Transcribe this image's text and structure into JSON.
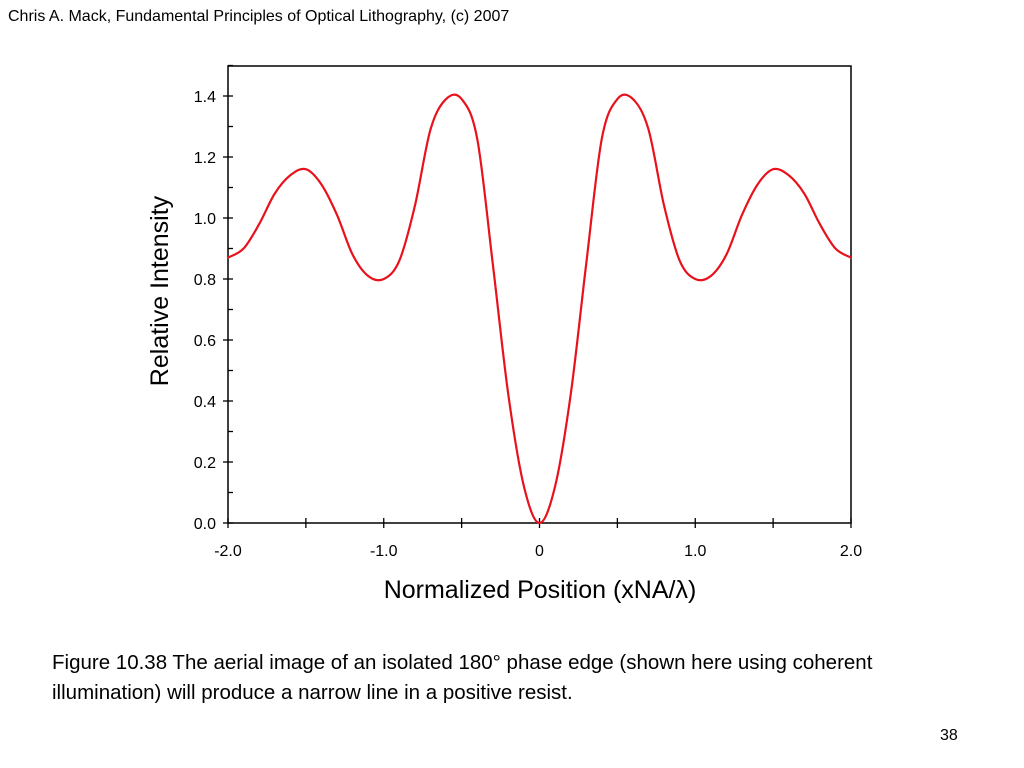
{
  "header": {
    "text": "Chris A. Mack, Fundamental Principles of Optical Lithography, (c) 2007"
  },
  "caption": {
    "text": "Figure 10.38  The aerial image of an isolated 180° phase edge (shown here using coherent illumination) will produce a narrow line in a positive resist."
  },
  "page_number": "38",
  "chart_data": {
    "type": "line",
    "title": "",
    "xlabel": "Normalized Position (xNA/λ)",
    "ylabel": "Relative Intensity",
    "xlim": [
      -2.0,
      2.0
    ],
    "ylim": [
      0.0,
      1.5
    ],
    "x_ticks": [
      -2.0,
      -1.0,
      0,
      1.0,
      2.0
    ],
    "x_tick_labels": [
      "-2.0",
      "-1.0",
      "0",
      "1.0",
      "2.0"
    ],
    "y_ticks": [
      0.0,
      0.2,
      0.4,
      0.6,
      0.8,
      1.0,
      1.2,
      1.4
    ],
    "y_tick_labels": [
      "0.0",
      "0.2",
      "0.4",
      "0.6",
      "0.8",
      "1.0",
      "1.2",
      "1.4"
    ],
    "grid": false,
    "legend": "none",
    "series_color": "#e8121c",
    "series": [
      {
        "x": [
          -2.0,
          -1.9,
          -1.8,
          -1.7,
          -1.6,
          -1.5,
          -1.4,
          -1.3,
          -1.2,
          -1.1,
          -1.0,
          -0.9,
          -0.8,
          -0.7,
          -0.6,
          -0.5,
          -0.4,
          -0.3,
          -0.2,
          -0.1,
          0.0,
          0.1,
          0.2,
          0.3,
          0.4,
          0.5,
          0.6,
          0.7,
          0.8,
          0.9,
          1.0,
          1.1,
          1.2,
          1.3,
          1.4,
          1.5,
          1.6,
          1.7,
          1.8,
          1.9,
          2.0
        ],
        "values": [
          0.87,
          0.9,
          0.98,
          1.08,
          1.14,
          1.16,
          1.11,
          1.01,
          0.88,
          0.81,
          0.8,
          0.86,
          1.04,
          1.29,
          1.39,
          1.39,
          1.26,
          0.85,
          0.42,
          0.12,
          0.0,
          0.12,
          0.42,
          0.85,
          1.26,
          1.39,
          1.39,
          1.29,
          1.04,
          0.86,
          0.8,
          0.81,
          0.88,
          1.01,
          1.11,
          1.16,
          1.14,
          1.08,
          0.98,
          0.9,
          0.87
        ]
      }
    ]
  }
}
